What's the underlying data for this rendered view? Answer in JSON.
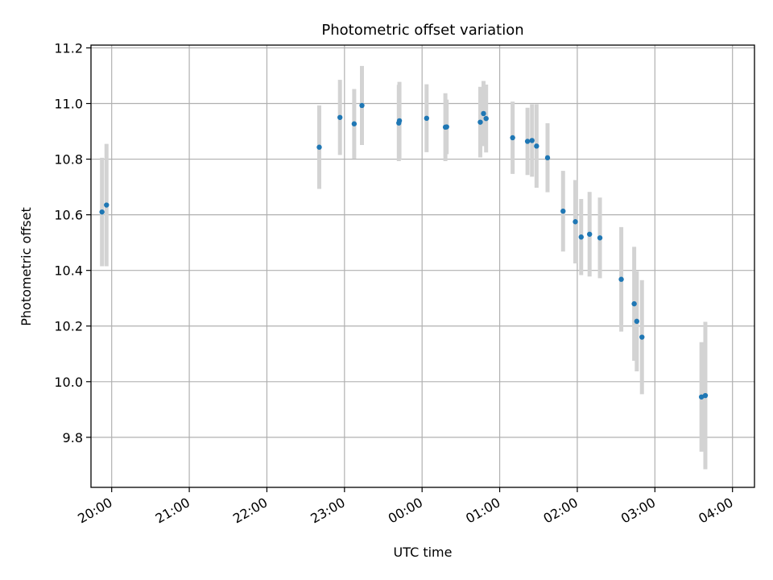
{
  "chart_data": {
    "type": "scatter",
    "title": "Photometric offset variation",
    "xlabel": "UTC time",
    "ylabel": "Photometric offset",
    "x_unit": "minutes",
    "xlim": [
      -16,
      497
    ],
    "ylim": [
      9.62,
      11.21
    ],
    "grid": true,
    "x_ticks": [
      {
        "value": 0,
        "label": "20:00"
      },
      {
        "value": 60,
        "label": "21:00"
      },
      {
        "value": 120,
        "label": "22:00"
      },
      {
        "value": 180,
        "label": "23:00"
      },
      {
        "value": 240,
        "label": "00:00"
      },
      {
        "value": 300,
        "label": "01:00"
      },
      {
        "value": 360,
        "label": "02:00"
      },
      {
        "value": 420,
        "label": "03:00"
      },
      {
        "value": 480,
        "label": "04:00"
      }
    ],
    "y_ticks": [
      9.8,
      10.0,
      10.2,
      10.4,
      10.6,
      10.8,
      11.0,
      11.2
    ],
    "colors": {
      "point": "#1f77b4",
      "errorbar": "#d3d3d3",
      "grid": "#b0b0b0"
    },
    "points": [
      {
        "x": -7.5,
        "y": 10.61,
        "err": 0.195
      },
      {
        "x": -4,
        "y": 10.635,
        "err": 0.22
      },
      {
        "x": 160.5,
        "y": 10.843,
        "err": 0.15
      },
      {
        "x": 176.5,
        "y": 10.95,
        "err": 0.135
      },
      {
        "x": 187.5,
        "y": 10.927,
        "err": 0.125
      },
      {
        "x": 193.5,
        "y": 10.993,
        "err": 0.142
      },
      {
        "x": 222,
        "y": 10.93,
        "err": 0.137
      },
      {
        "x": 222.5,
        "y": 10.938,
        "err": 0.14
      },
      {
        "x": 243.5,
        "y": 10.947,
        "err": 0.122
      },
      {
        "x": 258,
        "y": 10.915,
        "err": 0.122
      },
      {
        "x": 259,
        "y": 10.916,
        "err": 0.098
      },
      {
        "x": 285,
        "y": 10.933,
        "err": 0.127
      },
      {
        "x": 287.5,
        "y": 10.964,
        "err": 0.117
      },
      {
        "x": 289.5,
        "y": 10.946,
        "err": 0.122
      },
      {
        "x": 310,
        "y": 10.877,
        "err": 0.13
      },
      {
        "x": 321.5,
        "y": 10.864,
        "err": 0.121
      },
      {
        "x": 325,
        "y": 10.867,
        "err": 0.13
      },
      {
        "x": 328.5,
        "y": 10.847,
        "err": 0.15
      },
      {
        "x": 337,
        "y": 10.805,
        "err": 0.124
      },
      {
        "x": 349,
        "y": 10.613,
        "err": 0.145
      },
      {
        "x": 358.5,
        "y": 10.575,
        "err": 0.15
      },
      {
        "x": 363,
        "y": 10.52,
        "err": 0.137
      },
      {
        "x": 369.5,
        "y": 10.53,
        "err": 0.152
      },
      {
        "x": 377.5,
        "y": 10.517,
        "err": 0.145
      },
      {
        "x": 394,
        "y": 10.368,
        "err": 0.188
      },
      {
        "x": 404,
        "y": 10.28,
        "err": 0.205
      },
      {
        "x": 406,
        "y": 10.217,
        "err": 0.18
      },
      {
        "x": 410,
        "y": 10.16,
        "err": 0.205
      },
      {
        "x": 456,
        "y": 9.945,
        "err": 0.197
      },
      {
        "x": 459,
        "y": 9.95,
        "err": 0.265
      }
    ]
  }
}
